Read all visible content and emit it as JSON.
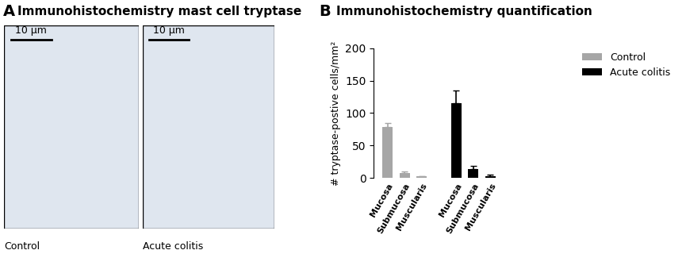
{
  "panel_a": {
    "panel_label": "A",
    "title": "Immunohistochemistry mast cell tryptase",
    "images": [
      {
        "label": "Control",
        "scale_bar": "10 µm"
      },
      {
        "label": "Acute colitis",
        "scale_bar": "10 µm"
      }
    ]
  },
  "chart_data": {
    "type": "bar",
    "panel_label": "B",
    "title": "Immunohistochemistry quantification",
    "y_label": "# tryptase-postive cells/mm²",
    "categories": [
      "Mucosa",
      "Submucosa",
      "Muscularis"
    ],
    "series": [
      {
        "name": "Control",
        "color": "#a6a6a6",
        "values": [
          78,
          7,
          2
        ],
        "errors": [
          7,
          3,
          1
        ]
      },
      {
        "name": "Acute colitis",
        "color": "#000000",
        "values": [
          115,
          13,
          3
        ],
        "errors": [
          20,
          5,
          2
        ]
      }
    ],
    "ylim": [
      0,
      200
    ],
    "yticks": [
      0,
      50,
      100,
      150,
      200
    ],
    "grid": false,
    "legend": "upper right"
  }
}
